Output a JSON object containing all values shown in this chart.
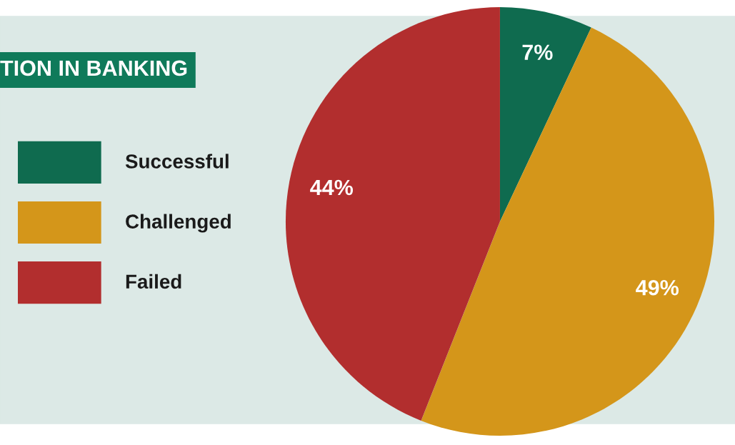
{
  "chart_data": {
    "type": "pie",
    "title": "TION IN BANKING",
    "categories": [
      "Successful",
      "Challenged",
      "Failed"
    ],
    "values": [
      7,
      49,
      44
    ],
    "colors": [
      "#0f6b4f",
      "#d4961a",
      "#b22e2e"
    ],
    "value_labels": [
      "7%",
      "49%",
      "44%"
    ],
    "legend": "left"
  }
}
